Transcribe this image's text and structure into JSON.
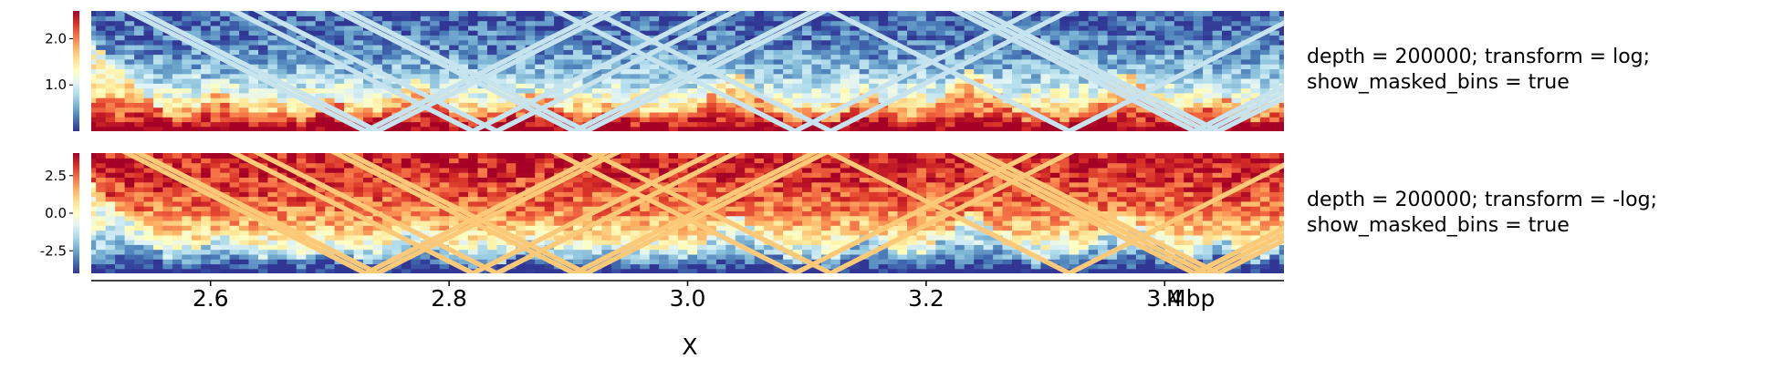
{
  "chart_data": {
    "type": "heatmap",
    "x_axis": {
      "ticks": [
        2.6,
        2.8,
        3.0,
        3.2,
        3.4
      ],
      "tick_labels": [
        "2.6",
        "2.8",
        "3.0",
        "3.2",
        "3.4"
      ],
      "range": [
        2.5,
        3.5
      ],
      "unit": "Mbp",
      "label": "X"
    },
    "tracks": [
      {
        "title": "depth = 200000; transform = log;\nshow_masked_bins = true",
        "title_lines": [
          "depth = 200000; transform = log;",
          "show_masked_bins = true"
        ],
        "colormap": "RdYlBu_r",
        "mask_color": "#c6e3ee",
        "colorbar": {
          "ticks": [
            1.0,
            2.0
          ],
          "tick_labels": [
            "1.0",
            "2.0"
          ],
          "range": [
            0.0,
            2.6
          ]
        }
      },
      {
        "title": "depth = 200000; transform = -log;\nshow_masked_bins = true",
        "title_lines": [
          "depth = 200000; transform = -log;",
          "show_masked_bins = true"
        ],
        "colormap": "RdYlBu_r",
        "mask_color": "#fbc978",
        "colorbar": {
          "ticks": [
            2.5,
            0.0,
            -2.5
          ],
          "tick_labels": [
            "2.5",
            "0.0",
            "-2.5"
          ],
          "range": [
            -4.0,
            4.0
          ]
        }
      }
    ],
    "tad_boundaries_mbp": [
      2.575,
      2.64,
      2.675,
      2.73,
      2.82,
      2.84,
      2.91,
      2.96,
      2.99,
      3.09,
      3.12,
      3.185,
      3.29,
      3.32,
      3.42,
      3.48
    ],
    "masked_bins_mbp": [
      2.73,
      2.74,
      2.82,
      2.84,
      2.905,
      2.915,
      3.09,
      3.12,
      3.32,
      3.425,
      3.435,
      3.445
    ]
  },
  "colors": {
    "cmap": [
      "#313695",
      "#4575b4",
      "#74add1",
      "#abd9e9",
      "#e0f3f8",
      "#ffffbf",
      "#fee090",
      "#fdae61",
      "#f46d43",
      "#d73027",
      "#a50026"
    ]
  }
}
